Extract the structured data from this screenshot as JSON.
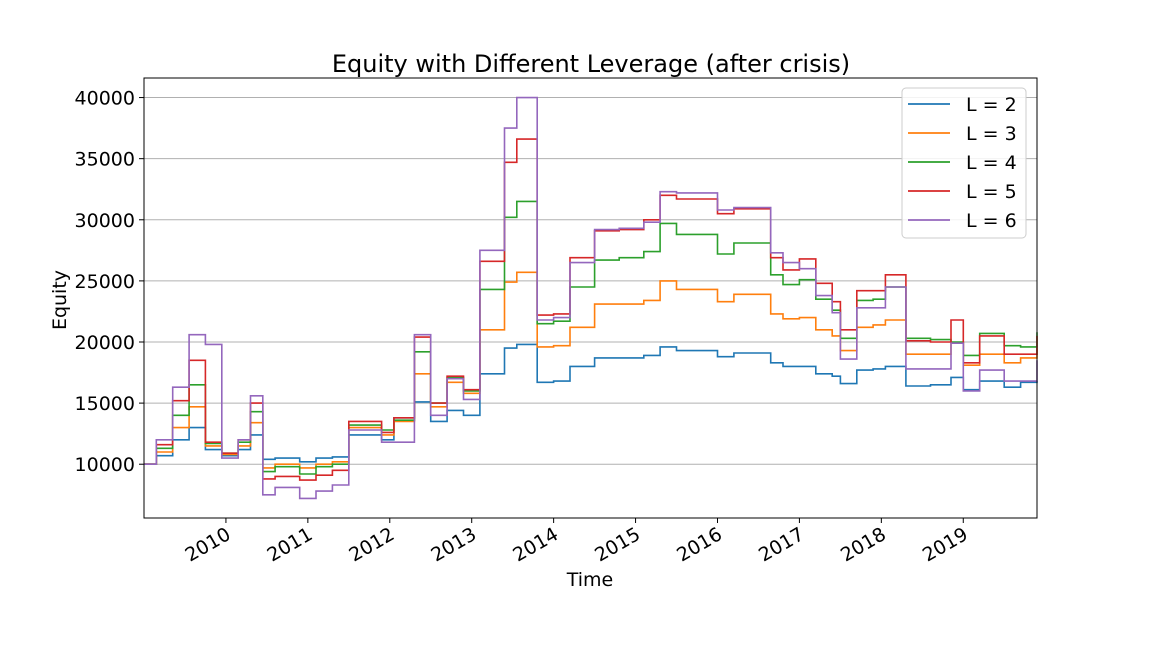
{
  "chart_data": {
    "type": "line",
    "title": "Equity with Different Leverage (after crisis)",
    "xlabel": "Time",
    "ylabel": "Equity",
    "xlim": [
      2009.0,
      2019.9
    ],
    "ylim": [
      5600,
      41600
    ],
    "yticks": [
      10000,
      15000,
      20000,
      25000,
      30000,
      35000,
      40000
    ],
    "xticks": [
      2010,
      2011,
      2012,
      2013,
      2014,
      2015,
      2016,
      2017,
      2018,
      2019
    ],
    "grid": "horizontal",
    "legend_position": "top-right",
    "series": [
      {
        "name": "L = 2",
        "color": "#1f77b4",
        "x": [
          2009.0,
          2009.15,
          2009.35,
          2009.55,
          2009.75,
          2009.95,
          2010.15,
          2010.3,
          2010.45,
          2010.6,
          2010.9,
          2011.1,
          2011.3,
          2011.5,
          2011.9,
          2012.05,
          2012.3,
          2012.5,
          2012.7,
          2012.9,
          2013.1,
          2013.4,
          2013.55,
          2013.8,
          2014.0,
          2014.2,
          2014.5,
          2014.8,
          2015.1,
          2015.3,
          2015.5,
          2015.8,
          2016.0,
          2016.2,
          2016.5,
          2016.65,
          2016.8,
          2017.0,
          2017.2,
          2017.4,
          2017.5,
          2017.7,
          2017.9,
          2018.05,
          2018.3,
          2018.6,
          2018.85,
          2019.0,
          2019.2,
          2019.5,
          2019.7,
          2019.9
        ],
        "values": [
          10000,
          10700,
          12000,
          13000,
          11200,
          10700,
          11200,
          12400,
          10400,
          10500,
          10200,
          10500,
          10600,
          12400,
          12000,
          13800,
          15100,
          13500,
          14400,
          14000,
          17400,
          19500,
          19800,
          16700,
          16800,
          18000,
          18700,
          18700,
          18900,
          19600,
          19300,
          19300,
          18800,
          19100,
          19100,
          18300,
          18000,
          18000,
          17400,
          17200,
          16600,
          17700,
          17800,
          18000,
          16400,
          16500,
          17100,
          16100,
          16800,
          16300,
          16700,
          16800
        ]
      },
      {
        "name": "L = 3",
        "color": "#ff7f0e",
        "x": [
          2009.0,
          2009.15,
          2009.35,
          2009.55,
          2009.75,
          2009.95,
          2010.15,
          2010.3,
          2010.45,
          2010.6,
          2010.9,
          2011.1,
          2011.3,
          2011.5,
          2011.9,
          2012.05,
          2012.3,
          2012.5,
          2012.7,
          2012.9,
          2013.1,
          2013.4,
          2013.55,
          2013.8,
          2014.0,
          2014.2,
          2014.5,
          2014.8,
          2015.1,
          2015.3,
          2015.5,
          2015.8,
          2016.0,
          2016.2,
          2016.5,
          2016.65,
          2016.8,
          2017.0,
          2017.2,
          2017.4,
          2017.5,
          2017.7,
          2017.9,
          2018.05,
          2018.3,
          2018.6,
          2018.85,
          2019.0,
          2019.2,
          2019.5,
          2019.7,
          2019.9
        ],
        "values": [
          10000,
          11000,
          13000,
          14700,
          11500,
          10800,
          11500,
          13400,
          9700,
          10000,
          9700,
          10000,
          10200,
          13000,
          12400,
          13500,
          17400,
          14700,
          16700,
          15800,
          21000,
          24900,
          25700,
          19600,
          19700,
          21200,
          23100,
          23100,
          23400,
          25000,
          24300,
          24300,
          23300,
          23900,
          23900,
          22300,
          21900,
          22000,
          21000,
          20500,
          19300,
          21200,
          21400,
          21800,
          19000,
          19000,
          19900,
          18100,
          19000,
          18300,
          18700,
          19500
        ]
      },
      {
        "name": "L = 4",
        "color": "#2ca02c",
        "x": [
          2009.0,
          2009.15,
          2009.35,
          2009.55,
          2009.75,
          2009.95,
          2010.15,
          2010.3,
          2010.45,
          2010.6,
          2010.9,
          2011.1,
          2011.3,
          2011.5,
          2011.9,
          2012.05,
          2012.3,
          2012.5,
          2012.7,
          2012.9,
          2013.1,
          2013.4,
          2013.55,
          2013.8,
          2014.0,
          2014.2,
          2014.5,
          2014.8,
          2015.1,
          2015.3,
          2015.5,
          2015.8,
          2016.0,
          2016.2,
          2016.5,
          2016.65,
          2016.8,
          2017.0,
          2017.2,
          2017.4,
          2017.5,
          2017.7,
          2017.9,
          2018.05,
          2018.3,
          2018.6,
          2018.85,
          2019.0,
          2019.2,
          2019.5,
          2019.7,
          2019.9
        ],
        "values": [
          10000,
          11300,
          14000,
          16500,
          11700,
          10900,
          11800,
          14300,
          9400,
          9800,
          9200,
          9800,
          10000,
          13200,
          12800,
          13600,
          19200,
          15000,
          17100,
          16000,
          24300,
          30200,
          31500,
          21500,
          21700,
          24500,
          26700,
          26900,
          27400,
          29700,
          28800,
          28800,
          27200,
          28100,
          28100,
          25500,
          24700,
          25100,
          23500,
          22600,
          20300,
          23400,
          23500,
          24500,
          20300,
          20200,
          20000,
          18900,
          20700,
          19700,
          19600,
          20800
        ]
      },
      {
        "name": "L = 5",
        "color": "#d62728",
        "x": [
          2009.0,
          2009.15,
          2009.35,
          2009.55,
          2009.75,
          2009.95,
          2010.15,
          2010.3,
          2010.45,
          2010.6,
          2010.9,
          2011.1,
          2011.3,
          2011.5,
          2011.9,
          2012.05,
          2012.3,
          2012.5,
          2012.7,
          2012.9,
          2013.1,
          2013.4,
          2013.55,
          2013.8,
          2014.0,
          2014.2,
          2014.5,
          2014.8,
          2015.1,
          2015.3,
          2015.5,
          2015.8,
          2016.0,
          2016.2,
          2016.5,
          2016.65,
          2016.8,
          2017.0,
          2017.2,
          2017.4,
          2017.5,
          2017.7,
          2017.9,
          2018.05,
          2018.3,
          2018.6,
          2018.85,
          2019.0,
          2019.2,
          2019.5,
          2019.7,
          2019.9
        ],
        "values": [
          10000,
          11600,
          15200,
          18500,
          11800,
          10900,
          12000,
          15000,
          8800,
          9000,
          8700,
          9100,
          9500,
          13500,
          12600,
          13800,
          20400,
          15000,
          17200,
          16100,
          26600,
          34700,
          36600,
          22200,
          22300,
          26900,
          29100,
          29200,
          30000,
          32000,
          31700,
          31700,
          30500,
          30900,
          30900,
          26900,
          25900,
          26800,
          24800,
          23300,
          21000,
          24200,
          24200,
          25500,
          20100,
          20000,
          21800,
          18300,
          20500,
          19000,
          19000,
          20500
        ]
      },
      {
        "name": "L = 6",
        "color": "#9467bd",
        "x": [
          2009.0,
          2009.15,
          2009.35,
          2009.55,
          2009.75,
          2009.95,
          2010.15,
          2010.3,
          2010.45,
          2010.6,
          2010.9,
          2011.1,
          2011.3,
          2011.5,
          2011.9,
          2012.05,
          2012.3,
          2012.5,
          2012.7,
          2012.9,
          2013.1,
          2013.4,
          2013.55,
          2013.8,
          2014.0,
          2014.2,
          2014.5,
          2014.8,
          2015.1,
          2015.3,
          2015.5,
          2015.8,
          2016.0,
          2016.2,
          2016.5,
          2016.65,
          2016.8,
          2017.0,
          2017.2,
          2017.4,
          2017.5,
          2017.7,
          2017.9,
          2018.05,
          2018.3,
          2018.6,
          2018.85,
          2019.0,
          2019.2,
          2019.5,
          2019.7,
          2019.9
        ],
        "values": [
          10000,
          12000,
          16300,
          20600,
          19800,
          10500,
          12000,
          15600,
          7500,
          8100,
          7200,
          7800,
          8300,
          12800,
          11800,
          11800,
          20600,
          14000,
          17000,
          15300,
          27500,
          37500,
          40000,
          21800,
          22000,
          26500,
          29200,
          29300,
          29800,
          32300,
          32200,
          32200,
          30800,
          31000,
          31000,
          27300,
          26500,
          26000,
          23800,
          22400,
          18600,
          22800,
          22800,
          24500,
          17800,
          17800,
          19900,
          16000,
          17700,
          16800,
          16800,
          18500
        ]
      }
    ]
  }
}
